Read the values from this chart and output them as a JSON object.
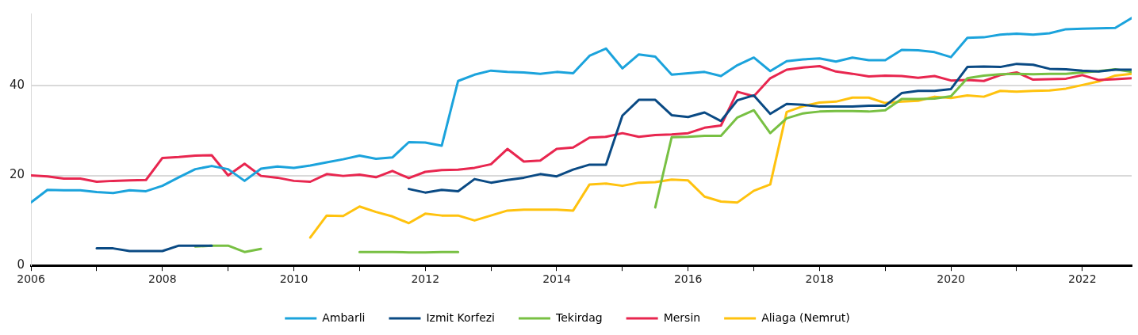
{
  "chart_data": {
    "type": "line",
    "x": [
      2006,
      2006.25,
      2006.5,
      2006.75,
      2007,
      2007.25,
      2007.5,
      2007.75,
      2008,
      2008.25,
      2008.5,
      2008.75,
      2009,
      2009.25,
      2009.5,
      2009.75,
      2010,
      2010.25,
      2010.5,
      2010.75,
      2011,
      2011.25,
      2011.5,
      2011.75,
      2012,
      2012.25,
      2012.5,
      2012.75,
      2013,
      2013.25,
      2013.5,
      2013.75,
      2014,
      2014.25,
      2014.5,
      2014.75,
      2015,
      2015.25,
      2015.5,
      2015.75,
      2016,
      2016.25,
      2016.5,
      2016.75,
      2017,
      2017.25,
      2017.5,
      2017.75,
      2018,
      2018.25,
      2018.5,
      2018.75,
      2019,
      2019.25,
      2019.5,
      2019.75,
      2020,
      2020.25,
      2020.5,
      2020.75,
      2021,
      2021.25,
      2021.5,
      2021.75,
      2022,
      2022.25,
      2022.5,
      2022.75
    ],
    "series": [
      {
        "name": "Ambarli",
        "color": "#1ba3dc",
        "values": [
          14,
          16.8,
          16.7,
          16.7,
          16.3,
          16.1,
          16.7,
          16.5,
          17.7,
          19.6,
          21.4,
          22.1,
          21.4,
          18.8,
          21.5,
          22,
          21.7,
          22.2,
          22.9,
          23.6,
          24.4,
          23.7,
          24,
          27.4,
          27.3,
          26.6,
          41,
          42.4,
          43.3,
          43,
          42.9,
          42.6,
          43,
          42.7,
          46.6,
          48.2,
          43.8,
          46.9,
          46.4,
          42.4,
          42.7,
          43,
          42.1,
          44.5,
          46.2,
          43.2,
          45.4,
          45.8,
          46,
          45.3,
          46.2,
          45.6,
          45.6,
          47.9,
          47.8,
          47.4,
          46.3,
          50.6,
          50.7,
          51.3,
          51.5,
          51.3,
          51.6,
          52.5,
          52.6,
          52.7,
          52.8,
          55
        ]
      },
      {
        "name": "Izmit Korfezi",
        "color": "#0a4a84",
        "values": [
          null,
          null,
          null,
          null,
          3.8,
          3.8,
          3.2,
          3.2,
          3.2,
          4.4,
          4.4,
          4.4,
          null,
          null,
          null,
          null,
          null,
          null,
          null,
          null,
          null,
          null,
          null,
          17,
          16.2,
          16.8,
          16.5,
          19.2,
          18.4,
          19,
          19.5,
          20.3,
          19.8,
          21.3,
          22.4,
          22.4,
          33.3,
          36.8,
          36.8,
          33.4,
          33,
          34,
          32.1,
          36.7,
          37.8,
          33.7,
          35.9,
          35.7,
          35.3,
          35.3,
          35.3,
          35.5,
          35.5,
          38.3,
          38.8,
          38.8,
          39.2,
          44.1,
          44.2,
          44.1,
          44.8,
          44.6,
          43.7,
          43.6,
          43.3,
          43.1,
          43.5,
          43.5
        ]
      },
      {
        "name": "Tekirdag",
        "color": "#78c043",
        "values": [
          null,
          null,
          null,
          null,
          null,
          null,
          null,
          null,
          null,
          null,
          4.2,
          4.4,
          4.4,
          3,
          3.7,
          null,
          null,
          null,
          null,
          null,
          3,
          3,
          3,
          2.9,
          2.9,
          3,
          3,
          null,
          null,
          null,
          null,
          null,
          null,
          null,
          null,
          null,
          null,
          null,
          12.9,
          28.5,
          28.6,
          28.8,
          28.8,
          32.9,
          34.5,
          29.4,
          32.7,
          33.8,
          34.2,
          34.3,
          34.3,
          34.2,
          34.5,
          37,
          37,
          37.1,
          37.6,
          41.6,
          42.2,
          42.5,
          42.6,
          42.5,
          42.6,
          42.6,
          42.9,
          43.2,
          43.6,
          43
        ]
      },
      {
        "name": "Mersin",
        "color": "#e8264f",
        "values": [
          20,
          19.8,
          19.3,
          19.3,
          18.6,
          18.8,
          18.9,
          19,
          23.9,
          24.1,
          24.4,
          24.5,
          20,
          22.6,
          19.9,
          19.5,
          18.8,
          18.6,
          20.3,
          19.9,
          20.2,
          19.6,
          21,
          19.4,
          20.8,
          21.2,
          21.3,
          21.7,
          22.5,
          25.9,
          23.1,
          23.3,
          25.9,
          26.2,
          28.4,
          28.6,
          29.4,
          28.6,
          29,
          29.1,
          29.4,
          30.6,
          31.1,
          38.6,
          37.6,
          41.6,
          43.5,
          44,
          44.3,
          43.1,
          42.6,
          42,
          42.2,
          42.1,
          41.7,
          42.1,
          41.1,
          41.2,
          41,
          42.3,
          42.9,
          41.3,
          41.4,
          41.5,
          42.3,
          41.2,
          41.4,
          41.6
        ]
      },
      {
        "name": "Aliaga (Nemrut)",
        "color": "#ffc20e",
        "values": [
          null,
          null,
          null,
          null,
          null,
          null,
          null,
          null,
          null,
          null,
          null,
          null,
          null,
          null,
          null,
          null,
          null,
          6.2,
          11.1,
          11,
          13.1,
          11.9,
          10.9,
          9.4,
          11.5,
          11.1,
          11.1,
          10,
          11.1,
          12.2,
          12.4,
          12.4,
          12.4,
          12.2,
          18,
          18.2,
          17.7,
          18.4,
          18.5,
          19.1,
          18.9,
          15.3,
          14.2,
          14,
          16.6,
          18,
          34.1,
          35.4,
          36.2,
          36.4,
          37.3,
          37.3,
          36.1,
          36.4,
          36.6,
          37.5,
          37.2,
          37.8,
          37.5,
          38.8,
          38.6,
          38.8,
          38.9,
          39.3,
          40.1,
          40.9,
          42.2,
          42.6
        ]
      }
    ],
    "xlim": [
      2006,
      2022.75
    ],
    "xticks": [
      2006,
      {
        "value": 2007,
        "label": null
      },
      2008,
      {
        "value": 2009,
        "label": null
      },
      2010,
      {
        "value": 2011,
        "label": null
      },
      2012,
      {
        "value": 2013,
        "label": null
      },
      2014,
      {
        "value": 2015,
        "label": null
      },
      2016,
      {
        "value": 2017,
        "label": null
      },
      2018,
      {
        "value": 2019,
        "label": null
      },
      2020,
      {
        "value": 2021,
        "label": null
      },
      2022
    ],
    "ylim": [
      0,
      56
    ],
    "yticks": [
      0,
      20,
      40
    ],
    "grid": "y",
    "legend": "bottom",
    "marker": "none",
    "line_style": "solid"
  }
}
